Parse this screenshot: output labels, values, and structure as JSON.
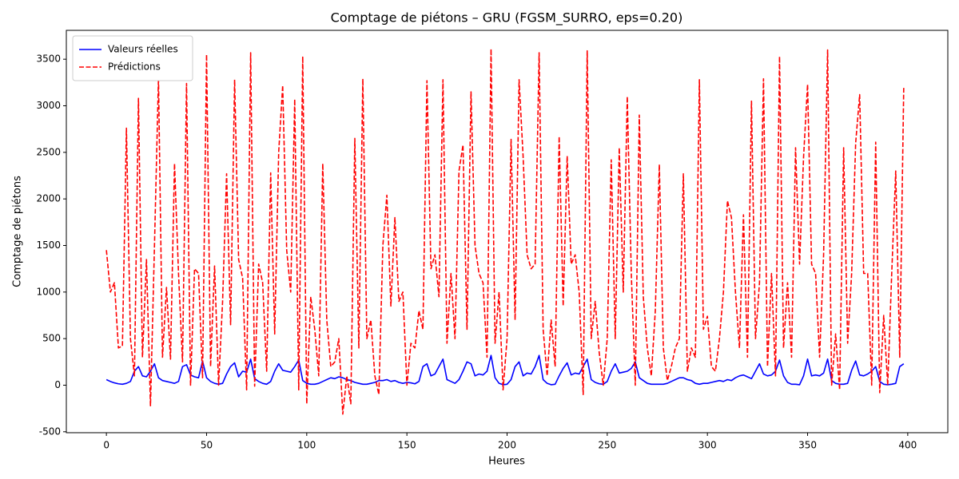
{
  "chart_data": {
    "type": "line",
    "title": "Comptage de piétons – GRU (FGSM_SURRO, eps=0.20)",
    "xlabel": "Heures",
    "ylabel": "Comptage de piétons",
    "xlim": [
      -20,
      420
    ],
    "ylim": [
      -510,
      3810
    ],
    "xticks": [
      0,
      50,
      100,
      150,
      200,
      250,
      300,
      350,
      400
    ],
    "yticks": [
      -500,
      0,
      500,
      1000,
      1500,
      2000,
      2500,
      3000,
      3500
    ],
    "legend": "upper left",
    "x": [
      0,
      2,
      4,
      6,
      8,
      10,
      12,
      14,
      16,
      18,
      20,
      22,
      24,
      26,
      28,
      30,
      32,
      34,
      36,
      38,
      40,
      42,
      44,
      46,
      48,
      50,
      52,
      54,
      56,
      58,
      60,
      62,
      64,
      66,
      68,
      70,
      72,
      74,
      76,
      78,
      80,
      82,
      84,
      86,
      88,
      90,
      92,
      94,
      96,
      98,
      100,
      102,
      104,
      106,
      108,
      110,
      112,
      114,
      116,
      118,
      120,
      122,
      124,
      126,
      128,
      130,
      132,
      134,
      136,
      138,
      140,
      142,
      144,
      146,
      148,
      150,
      152,
      154,
      156,
      158,
      160,
      162,
      164,
      166,
      168,
      170,
      172,
      174,
      176,
      178,
      180,
      182,
      184,
      186,
      188,
      190,
      192,
      194,
      196,
      198,
      200,
      202,
      204,
      206,
      208,
      210,
      212,
      214,
      216,
      218,
      220,
      222,
      224,
      226,
      228,
      230,
      232,
      234,
      236,
      238,
      240,
      242,
      244,
      246,
      248,
      250,
      252,
      254,
      256,
      258,
      260,
      262,
      264,
      266,
      268,
      270,
      272,
      274,
      276,
      278,
      280,
      282,
      284,
      286,
      288,
      290,
      292,
      294,
      296,
      298,
      300,
      302,
      304,
      306,
      308,
      310,
      312,
      314,
      316,
      318,
      320,
      322,
      324,
      326,
      328,
      330,
      332,
      334,
      336,
      338,
      340,
      342,
      344,
      346,
      348,
      350,
      352,
      354,
      356,
      358,
      360,
      362,
      364,
      366,
      368,
      370,
      372,
      374,
      376,
      378,
      380,
      382,
      384,
      386,
      388,
      390,
      392,
      394,
      396,
      398
    ],
    "series": [
      {
        "name": "Valeurs réelles",
        "color": "#0000ff",
        "linestyle": "solid",
        "values": [
          60,
          40,
          25,
          15,
          10,
          20,
          40,
          150,
          200,
          100,
          90,
          150,
          230,
          80,
          50,
          40,
          30,
          20,
          40,
          200,
          220,
          110,
          90,
          80,
          260,
          80,
          40,
          20,
          10,
          20,
          120,
          200,
          240,
          90,
          150,
          140,
          280,
          70,
          40,
          20,
          10,
          40,
          150,
          230,
          160,
          150,
          140,
          200,
          270,
          50,
          20,
          10,
          10,
          20,
          40,
          60,
          80,
          70,
          90,
          80,
          60,
          50,
          30,
          20,
          10,
          10,
          20,
          30,
          50,
          50,
          60,
          40,
          50,
          30,
          20,
          30,
          25,
          15,
          40,
          200,
          230,
          100,
          120,
          200,
          280,
          60,
          40,
          20,
          60,
          150,
          250,
          230,
          100,
          120,
          110,
          150,
          320,
          80,
          20,
          5,
          10,
          60,
          200,
          250,
          100,
          130,
          120,
          200,
          320,
          60,
          20,
          5,
          10,
          100,
          180,
          240,
          110,
          130,
          120,
          200,
          280,
          60,
          30,
          15,
          10,
          40,
          150,
          230,
          130,
          140,
          150,
          180,
          250,
          80,
          50,
          20,
          10,
          10,
          10,
          10,
          20,
          40,
          60,
          80,
          80,
          60,
          50,
          20,
          10,
          20,
          20,
          30,
          40,
          50,
          40,
          60,
          50,
          80,
          100,
          110,
          90,
          70,
          150,
          230,
          120,
          100,
          110,
          150,
          270,
          100,
          30,
          10,
          10,
          5,
          100,
          280,
          100,
          110,
          100,
          130,
          280,
          50,
          20,
          10,
          10,
          20,
          160,
          260,
          110,
          100,
          120,
          150,
          200,
          40,
          10,
          5,
          10,
          20,
          200,
          230
        ]
      },
      {
        "name": "Prédictions",
        "color": "#ff0000",
        "linestyle": "dashed",
        "values": [
          1450,
          1000,
          1100,
          400,
          420,
          2760,
          500,
          100,
          3080,
          300,
          1350,
          -220,
          1500,
          3300,
          300,
          1050,
          280,
          2380,
          1200,
          250,
          3240,
          0,
          1250,
          1200,
          80,
          3550,
          200,
          1280,
          0,
          900,
          2270,
          650,
          3280,
          1350,
          1150,
          -50,
          3570,
          -10,
          1300,
          1100,
          150,
          2280,
          550,
          2500,
          3220,
          1450,
          1000,
          3070,
          -50,
          3530,
          -200,
          950,
          600,
          100,
          2380,
          700,
          200,
          250,
          500,
          -310,
          100,
          -200,
          2650,
          400,
          3290,
          500,
          700,
          100,
          -100,
          1500,
          2040,
          850,
          1800,
          900,
          1000,
          0,
          450,
          400,
          800,
          600,
          3270,
          1250,
          1400,
          950,
          3280,
          450,
          1200,
          500,
          2300,
          2580,
          600,
          3150,
          1500,
          1200,
          1100,
          300,
          3610,
          450,
          1000,
          -50,
          500,
          2640,
          700,
          3280,
          2460,
          1400,
          1250,
          1300,
          3570,
          600,
          100,
          700,
          200,
          2670,
          850,
          2460,
          1300,
          1400,
          1000,
          -100,
          3590,
          500,
          900,
          350,
          0,
          500,
          2420,
          500,
          2550,
          1000,
          3100,
          1200,
          0,
          2900,
          950,
          400,
          100,
          800,
          2370,
          400,
          50,
          200,
          400,
          500,
          2270,
          150,
          400,
          300,
          3280,
          600,
          740,
          200,
          150,
          500,
          1000,
          1980,
          1800,
          1000,
          400,
          1830,
          300,
          3050,
          500,
          1100,
          3290,
          200,
          1200,
          100,
          3530,
          400,
          1100,
          300,
          2550,
          1300,
          2450,
          3230,
          1300,
          1200,
          300,
          1400,
          3600,
          0,
          550,
          -50,
          2550,
          450,
          1200,
          2600,
          3120,
          1200,
          1200,
          0,
          2610,
          -80,
          750,
          0,
          1200,
          2300,
          300,
          3200
        ]
      }
    ]
  }
}
